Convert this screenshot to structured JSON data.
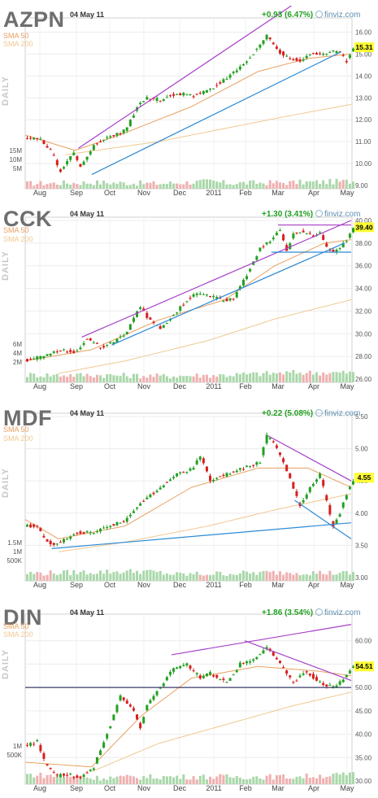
{
  "common": {
    "date": "04 May 11",
    "brand": "finviz.com",
    "sma50_label": "SMA 50",
    "sma200_label": "SMA 200",
    "daily_label": "DAILY",
    "months": [
      "Aug",
      "Sep",
      "Oct",
      "Nov",
      "Dec",
      "2011",
      "Feb",
      "Mar",
      "Apr",
      "May"
    ],
    "colors": {
      "up": "#22a022",
      "down": "#d81e1e",
      "sma50": "#e8a060",
      "sma200": "#f0c890",
      "upper_trend": "#a640c8",
      "lower_trend": "#2a8ad6",
      "price_tag": "#ffff33"
    }
  },
  "chart_data": [
    {
      "type": "candlestick",
      "ticker": "AZPN",
      "change": "+0.93 (6.47%)",
      "last_price": "15.31",
      "ylim": [
        9,
        16.5
      ],
      "y_ticks": [
        "16.00",
        "15.00",
        "14.00",
        "13.00",
        "12.00",
        "11.00",
        "10.00",
        "9.00"
      ],
      "volume_ticks": [
        "15M",
        "10M",
        "5M"
      ],
      "close_points": [
        [
          0,
          11.2
        ],
        [
          4,
          11.1
        ],
        [
          7,
          10.6
        ],
        [
          9,
          10.0
        ],
        [
          10,
          9.6
        ],
        [
          12,
          10.1
        ],
        [
          14,
          10.5
        ],
        [
          16,
          9.8
        ],
        [
          20,
          10.8
        ],
        [
          24,
          11.2
        ],
        [
          28,
          11.4
        ],
        [
          30,
          11.6
        ],
        [
          33,
          12.6
        ],
        [
          36,
          13.0
        ],
        [
          40,
          12.9
        ],
        [
          45,
          13.2
        ],
        [
          50,
          13.1
        ],
        [
          55,
          13.4
        ],
        [
          60,
          13.9
        ],
        [
          65,
          14.5
        ],
        [
          70,
          15.4
        ],
        [
          72,
          15.8
        ],
        [
          74,
          15.5
        ],
        [
          76,
          15.1
        ],
        [
          79,
          14.8
        ],
        [
          82,
          14.7
        ],
        [
          85,
          15.0
        ],
        [
          88,
          15.0
        ],
        [
          91,
          15.1
        ],
        [
          94,
          15.1
        ],
        [
          96,
          14.6
        ],
        [
          98,
          15.3
        ]
      ],
      "sma50_points": [
        [
          0,
          11.3
        ],
        [
          15,
          10.6
        ],
        [
          30,
          11.4
        ],
        [
          50,
          12.6
        ],
        [
          70,
          14.2
        ],
        [
          85,
          14.8
        ],
        [
          98,
          15.0
        ]
      ],
      "sma200_points": [
        [
          12,
          10.4
        ],
        [
          40,
          11.0
        ],
        [
          60,
          11.6
        ],
        [
          80,
          12.2
        ],
        [
          98,
          12.7
        ]
      ],
      "trendlines": [
        {
          "kind": "upper",
          "from": [
            16,
            10.7
          ],
          "to": [
            80,
            17.2
          ]
        },
        {
          "kind": "lower",
          "from": [
            20,
            9.5
          ],
          "to": [
            95,
            15.1
          ]
        }
      ],
      "volume_points": [
        [
          0,
          0.1
        ],
        [
          20,
          0.15
        ],
        [
          40,
          0.1
        ],
        [
          55,
          0.2
        ],
        [
          60,
          0.12
        ],
        [
          80,
          0.15
        ],
        [
          98,
          0.2
        ]
      ]
    },
    {
      "type": "candlestick",
      "ticker": "CCK",
      "change": "+1.30 (3.41%)",
      "last_price": "39.40",
      "ylim": [
        26,
        40
      ],
      "y_ticks": [
        "40.00",
        "38.00",
        "36.00",
        "34.00",
        "32.00",
        "30.00",
        "28.00",
        "26.00"
      ],
      "volume_ticks": [
        "6M",
        "4M",
        "2M"
      ],
      "close_points": [
        [
          0,
          27.7
        ],
        [
          5,
          28.0
        ],
        [
          10,
          28.6
        ],
        [
          15,
          28.4
        ],
        [
          18,
          29.6
        ],
        [
          22,
          28.8
        ],
        [
          26,
          29.2
        ],
        [
          30,
          30.2
        ],
        [
          34,
          32.4
        ],
        [
          36,
          31.5
        ],
        [
          40,
          30.5
        ],
        [
          45,
          32.0
        ],
        [
          50,
          33.5
        ],
        [
          55,
          33.4
        ],
        [
          58,
          33.0
        ],
        [
          62,
          33.0
        ],
        [
          66,
          35.2
        ],
        [
          70,
          37.5
        ],
        [
          74,
          38.4
        ],
        [
          76,
          39.2
        ],
        [
          78,
          37.2
        ],
        [
          80,
          38.8
        ],
        [
          83,
          39.0
        ],
        [
          86,
          38.6
        ],
        [
          88,
          38.9
        ],
        [
          90,
          37.6
        ],
        [
          92,
          37.2
        ],
        [
          94,
          37.6
        ],
        [
          96,
          38.2
        ],
        [
          98,
          39.4
        ]
      ],
      "sma50_points": [
        [
          0,
          27.6
        ],
        [
          20,
          28.6
        ],
        [
          40,
          31.2
        ],
        [
          60,
          33.0
        ],
        [
          75,
          36.0
        ],
        [
          90,
          38.0
        ],
        [
          98,
          38.3
        ]
      ],
      "sma200_points": [
        [
          10,
          26.5
        ],
        [
          30,
          27.6
        ],
        [
          55,
          29.4
        ],
        [
          75,
          31.3
        ],
        [
          98,
          33.0
        ]
      ],
      "trendlines": [
        {
          "kind": "upper",
          "from": [
            17,
            29.7
          ],
          "to": [
            98,
            40.0
          ]
        },
        {
          "kind": "lower",
          "from": [
            26,
            29.0
          ],
          "to": [
            96,
            38.0
          ]
        },
        {
          "kind": "lower",
          "from": [
            74,
            37.2
          ],
          "to": [
            98,
            37.2
          ]
        },
        {
          "kind": "upper",
          "from": [
            76,
            39.6
          ],
          "to": [
            98,
            39.6
          ]
        }
      ],
      "volume_points": [
        [
          0,
          0.2
        ],
        [
          20,
          0.2
        ],
        [
          40,
          0.15
        ],
        [
          60,
          0.2
        ],
        [
          80,
          0.3
        ],
        [
          98,
          0.3
        ]
      ]
    },
    {
      "type": "candlestick",
      "ticker": "MDF",
      "change": "+0.22 (5.08%)",
      "last_price": "4.55",
      "ylim": [
        3,
        5.5
      ],
      "y_ticks": [
        "5.50",
        "5.00",
        "4.50",
        "4.00",
        "3.50",
        "3.00"
      ],
      "volume_ticks": [
        "1.5M",
        "1M",
        "500K"
      ],
      "close_points": [
        [
          0,
          3.8
        ],
        [
          3,
          3.8
        ],
        [
          5,
          3.6
        ],
        [
          8,
          3.5
        ],
        [
          12,
          3.6
        ],
        [
          15,
          3.7
        ],
        [
          20,
          3.7
        ],
        [
          25,
          3.8
        ],
        [
          30,
          3.9
        ],
        [
          35,
          4.2
        ],
        [
          40,
          4.4
        ],
        [
          45,
          4.6
        ],
        [
          50,
          4.7
        ],
        [
          52,
          4.9
        ],
        [
          55,
          4.5
        ],
        [
          60,
          4.6
        ],
        [
          65,
          4.7
        ],
        [
          70,
          4.8
        ],
        [
          72,
          5.2
        ],
        [
          74,
          5.1
        ],
        [
          77,
          4.8
        ],
        [
          80,
          4.4
        ],
        [
          82,
          4.1
        ],
        [
          85,
          4.4
        ],
        [
          88,
          4.6
        ],
        [
          90,
          4.2
        ],
        [
          92,
          3.8
        ],
        [
          94,
          4.0
        ],
        [
          96,
          4.3
        ],
        [
          98,
          4.5
        ]
      ],
      "sma50_points": [
        [
          0,
          3.9
        ],
        [
          10,
          3.6
        ],
        [
          30,
          3.8
        ],
        [
          50,
          4.4
        ],
        [
          70,
          4.7
        ],
        [
          85,
          4.7
        ],
        [
          98,
          4.4
        ]
      ],
      "sma200_points": [
        [
          10,
          3.4
        ],
        [
          30,
          3.55
        ],
        [
          55,
          3.8
        ],
        [
          75,
          4.05
        ],
        [
          98,
          4.3
        ]
      ],
      "trendlines": [
        {
          "kind": "lower",
          "from": [
            8,
            3.45
          ],
          "to": [
            98,
            3.85
          ]
        },
        {
          "kind": "upper",
          "from": [
            73,
            5.2
          ],
          "to": [
            98,
            4.5
          ]
        },
        {
          "kind": "lower",
          "from": [
            81,
            4.2
          ],
          "to": [
            98,
            3.6
          ]
        }
      ],
      "volume_points": [
        [
          0,
          0.2
        ],
        [
          35,
          0.3
        ],
        [
          45,
          0.15
        ],
        [
          60,
          0.2
        ],
        [
          80,
          0.25
        ],
        [
          98,
          0.2
        ]
      ]
    },
    {
      "type": "candlestick",
      "ticker": "DIN",
      "change": "+1.86 (3.54%)",
      "last_price": "54.51",
      "ylim": [
        30,
        65
      ],
      "y_ticks": [
        "60.00",
        "55.00",
        "50.00",
        "45.00",
        "40.00",
        "35.00",
        "30.00"
      ],
      "volume_ticks": [
        "1M",
        "500K"
      ],
      "close_points": [
        [
          0,
          37.5
        ],
        [
          3,
          38.5
        ],
        [
          6,
          33.0
        ],
        [
          9,
          31.0
        ],
        [
          12,
          31.5
        ],
        [
          16,
          30.5
        ],
        [
          20,
          33.0
        ],
        [
          24,
          40.0
        ],
        [
          28,
          48.0
        ],
        [
          32,
          45.0
        ],
        [
          34,
          41.5
        ],
        [
          36,
          46.0
        ],
        [
          40,
          50.0
        ],
        [
          44,
          54.0
        ],
        [
          48,
          55.0
        ],
        [
          52,
          52.0
        ],
        [
          55,
          53.0
        ],
        [
          60,
          51.0
        ],
        [
          64,
          55.0
        ],
        [
          68,
          56.0
        ],
        [
          72,
          58.5
        ],
        [
          74,
          57.0
        ],
        [
          76,
          55.0
        ],
        [
          80,
          51.0
        ],
        [
          84,
          53.5
        ],
        [
          88,
          51.0
        ],
        [
          92,
          50.0
        ],
        [
          95,
          51.5
        ],
        [
          98,
          54.5
        ]
      ],
      "sma50_points": [
        [
          0,
          34.0
        ],
        [
          20,
          33.0
        ],
        [
          35,
          44.0
        ],
        [
          50,
          52.0
        ],
        [
          70,
          54.5
        ],
        [
          88,
          53.5
        ],
        [
          98,
          52.5
        ]
      ],
      "sma200_points": [
        [
          20,
          32.0
        ],
        [
          40,
          38.0
        ],
        [
          60,
          42.0
        ],
        [
          80,
          46.0
        ],
        [
          98,
          49.0
        ]
      ],
      "trendlines": [
        {
          "kind": "upper",
          "from": [
            44,
            57.0
          ],
          "to": [
            98,
            63.5
          ]
        },
        {
          "kind": "upper",
          "from": [
            66,
            60.0
          ],
          "to": [
            98,
            51.5
          ]
        },
        {
          "kind": "hline",
          "from": [
            0,
            50.0
          ],
          "to": [
            98,
            50.0
          ]
        }
      ],
      "volume_points": [
        [
          0,
          0.3
        ],
        [
          20,
          0.15
        ],
        [
          40,
          0.2
        ],
        [
          60,
          0.2
        ],
        [
          80,
          0.2
        ],
        [
          98,
          0.3
        ]
      ]
    }
  ]
}
